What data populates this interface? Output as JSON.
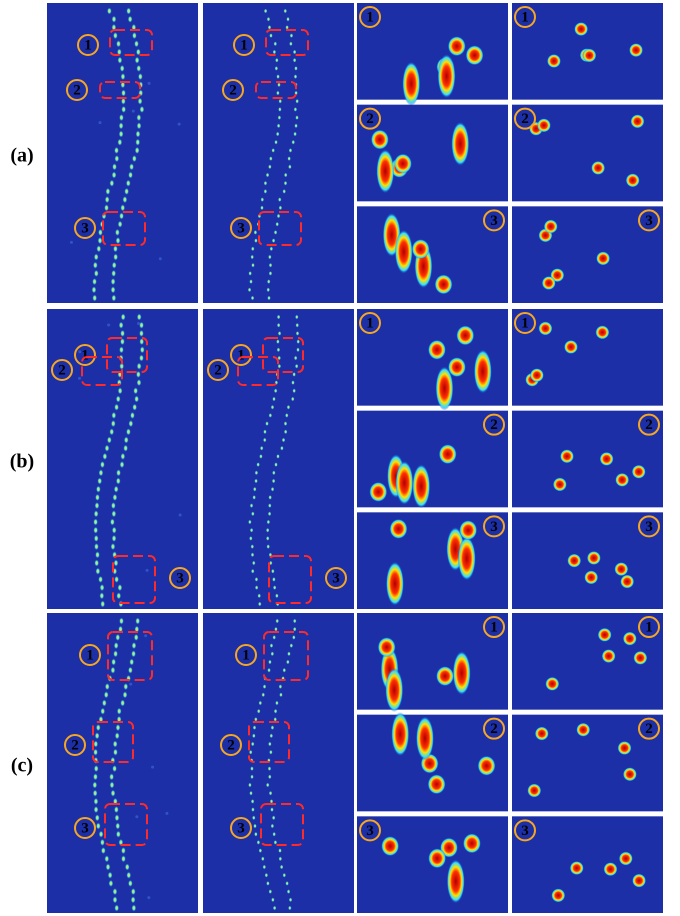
{
  "rows": [
    {
      "label": "(a)",
      "markers": [
        "1",
        "2",
        "3"
      ]
    },
    {
      "label": "(b)",
      "markers": [
        "1",
        "2",
        "3"
      ]
    },
    {
      "label": "(c)",
      "markers": [
        "1",
        "2",
        "3"
      ]
    }
  ]
}
